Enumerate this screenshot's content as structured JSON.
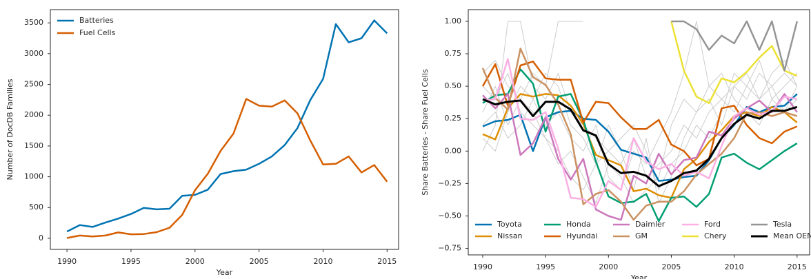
{
  "chart_data": [
    {
      "type": "line",
      "xlabel": "Year",
      "ylabel": "Number of DocDB Families",
      "x": [
        1990,
        1991,
        1992,
        1993,
        1994,
        1995,
        1996,
        1997,
        1998,
        1999,
        2000,
        2001,
        2002,
        2003,
        2004,
        2005,
        2006,
        2007,
        2008,
        2009,
        2010,
        2011,
        2012,
        2013,
        2014,
        2015
      ],
      "series": [
        {
          "name": "Batteries",
          "color": "#0173b2",
          "values": [
            110,
            215,
            185,
            255,
            320,
            395,
            495,
            470,
            480,
            690,
            705,
            790,
            1045,
            1090,
            1115,
            1210,
            1330,
            1515,
            1790,
            2245,
            2590,
            3480,
            3185,
            3250,
            3540,
            3330
          ]
        },
        {
          "name": "Fuel Cells",
          "color": "#d55e00",
          "values": [
            5,
            45,
            30,
            45,
            95,
            65,
            70,
            100,
            170,
            380,
            780,
            1050,
            1420,
            1700,
            2265,
            2155,
            2140,
            2240,
            2030,
            1590,
            1200,
            1210,
            1330,
            1070,
            1190,
            920
          ]
        }
      ],
      "xlim": [
        1988.7,
        2015.9
      ],
      "xticks": [
        1990,
        1995,
        2000,
        2005,
        2010,
        2015
      ],
      "ylim": [
        -180,
        3715
      ],
      "yticks": [
        0,
        500,
        1000,
        1500,
        2000,
        2500,
        3000,
        3500
      ],
      "legend": "upper left"
    },
    {
      "type": "line",
      "xlabel": "Year",
      "ylabel": "Share Batteries - Share Fuel Cells",
      "x": [
        1990,
        1991,
        1992,
        1993,
        1994,
        1995,
        1996,
        1997,
        1998,
        1999,
        2000,
        2001,
        2002,
        2003,
        2004,
        2005,
        2006,
        2007,
        2008,
        2009,
        2010,
        2011,
        2012,
        2013,
        2014,
        2015
      ],
      "background_color": "#cccccc",
      "background_series": [
        {
          "values": [
            0.0,
            0.2,
            1.0,
            1.0,
            0.5,
            0.4,
            0.6,
            0.3,
            0.2,
            0.1,
            0.0,
            -0.1,
            0.1,
            -0.2,
            -0.1,
            0.0,
            0.2,
            0.1,
            0.3,
            0.4,
            0.5,
            0.6,
            0.4,
            0.5,
            0.6,
            0.5
          ]
        },
        {
          "values": [
            0.3,
            0.5,
            0.2,
            0.4,
            0.6,
            0.5,
            1.0,
            1.0,
            1.0,
            null,
            null,
            null,
            null,
            null,
            null,
            null,
            null,
            null,
            null,
            null,
            null,
            null,
            null,
            null,
            null,
            null
          ]
        },
        {
          "values": [
            0.5,
            0.4,
            0.6,
            0.3,
            0.2,
            0.1,
            0.0,
            -0.2,
            -0.3,
            -0.1,
            0.2,
            0.0,
            -0.3,
            0.1,
            -0.4,
            -0.2,
            0.1,
            0.3,
            0.4,
            0.2,
            0.5,
            0.4,
            0.6,
            0.5,
            0.3,
            0.4
          ]
        },
        {
          "values": [
            0.1,
            0.0,
            0.3,
            0.5,
            0.4,
            0.2,
            0.3,
            0.1,
            0.0,
            0.2,
            -0.2,
            -0.3,
            0.0,
            -0.1,
            0.1,
            0.3,
            0.6,
            1.0,
            0.5,
            0.4,
            0.3,
            0.5,
            0.4,
            0.6,
            0.7,
            0.5
          ]
        },
        {
          "values": [
            0.6,
            0.7,
            0.5,
            0.4,
            0.3,
            0.1,
            -0.1,
            0.0,
            -0.2,
            -0.4,
            -0.1,
            -0.2,
            -0.4,
            -0.3,
            -0.2,
            0.2,
            0.4,
            0.3,
            0.5,
            0.6,
            0.4,
            0.3,
            0.2,
            0.4,
            0.3,
            0.5
          ]
        },
        {
          "values": [
            0.2,
            0.3,
            0.1,
            0.2,
            0.4,
            0.6,
            0.5,
            0.2,
            0.1,
            -0.1,
            0.0,
            0.1,
            0.2,
            0.0,
            -0.3,
            -0.1,
            0.0,
            0.2,
            0.1,
            0.3,
            0.6,
            0.5,
            0.7,
            0.4,
            0.5,
            0.6
          ]
        }
      ],
      "series": [
        {
          "name": "Toyota",
          "color": "#0173b2",
          "values": [
            0.19,
            0.23,
            0.24,
            0.28,
            0.0,
            0.26,
            0.3,
            0.31,
            0.25,
            0.24,
            0.15,
            0.01,
            -0.02,
            -0.05,
            -0.23,
            -0.22,
            -0.2,
            -0.19,
            -0.07,
            0.1,
            0.2,
            0.34,
            0.3,
            0.34,
            0.35,
            0.44
          ]
        },
        {
          "name": "Nissan",
          "color": "#de8f05",
          "values": [
            0.13,
            0.09,
            0.33,
            0.44,
            0.42,
            0.44,
            0.43,
            0.35,
            0.21,
            -0.03,
            -0.07,
            -0.11,
            -0.31,
            -0.29,
            -0.34,
            -0.36,
            -0.14,
            -0.06,
            0.07,
            0.16,
            0.27,
            0.3,
            0.27,
            0.34,
            0.3,
            0.22
          ]
        },
        {
          "name": "Honda",
          "color": "#029e73",
          "values": [
            0.37,
            0.43,
            0.44,
            0.63,
            0.52,
            0.15,
            0.42,
            0.44,
            0.24,
            -0.08,
            -0.35,
            -0.4,
            -0.39,
            -0.33,
            -0.54,
            -0.36,
            -0.35,
            -0.43,
            -0.33,
            -0.05,
            -0.02,
            -0.09,
            -0.14,
            -0.07,
            0.0,
            0.06
          ]
        },
        {
          "name": "Hyundai",
          "color": "#d55e00",
          "values": [
            0.5,
            0.67,
            0.35,
            0.66,
            0.69,
            0.56,
            0.55,
            0.55,
            0.22,
            0.38,
            0.37,
            0.26,
            0.17,
            0.17,
            0.24,
            0.05,
            0.0,
            -0.11,
            -0.06,
            0.33,
            0.35,
            0.2,
            0.1,
            0.06,
            0.15,
            0.19
          ]
        },
        {
          "name": "Daimler",
          "color": "#cc78bc",
          "values": [
            0.43,
            0.33,
            0.44,
            -0.03,
            0.06,
            0.26,
            -0.06,
            -0.22,
            -0.06,
            -0.45,
            -0.5,
            -0.53,
            -0.19,
            -0.25,
            -0.02,
            -0.18,
            -0.07,
            -0.05,
            0.15,
            0.12,
            0.25,
            0.33,
            0.39,
            0.3,
            0.44,
            0.3
          ]
        },
        {
          "name": "GM",
          "color": "#ca9161",
          "values": [
            0.64,
            0.41,
            0.32,
            0.79,
            0.57,
            0.51,
            0.36,
            0.13,
            -0.41,
            -0.33,
            -0.3,
            -0.39,
            -0.53,
            -0.42,
            -0.39,
            -0.39,
            -0.31,
            -0.18,
            -0.1,
            -0.02,
            0.1,
            0.29,
            0.3,
            0.27,
            0.3,
            0.27
          ]
        },
        {
          "name": "Ford",
          "color": "#fbafe4",
          "values": [
            0.39,
            0.4,
            0.71,
            0.25,
            0.24,
            0.3,
            0.02,
            -0.36,
            -0.37,
            -0.43,
            -0.23,
            -0.3,
            0.1,
            -0.08,
            -0.14,
            -0.1,
            -0.19,
            -0.16,
            -0.21,
            0.04,
            0.27,
            0.33,
            0.28,
            0.31,
            0.42,
            0.4
          ]
        },
        {
          "name": "Chery",
          "color": "#ece133",
          "values": [
            null,
            null,
            null,
            null,
            null,
            null,
            null,
            null,
            null,
            null,
            null,
            null,
            null,
            null,
            null,
            1.0,
            0.62,
            0.42,
            0.37,
            0.56,
            0.53,
            0.61,
            0.72,
            0.81,
            0.62,
            0.58
          ]
        },
        {
          "name": "Tesla",
          "color": "#949494",
          "values": [
            null,
            null,
            null,
            null,
            null,
            null,
            null,
            null,
            null,
            null,
            null,
            null,
            null,
            null,
            null,
            1.0,
            1.0,
            0.94,
            0.78,
            0.89,
            0.83,
            1.0,
            0.78,
            1.0,
            0.62,
            1.0
          ]
        },
        {
          "name": "Mean OEM",
          "color": "#000000",
          "values": [
            0.4,
            0.36,
            0.38,
            0.39,
            0.27,
            0.38,
            0.38,
            0.32,
            0.16,
            0.12,
            -0.1,
            -0.17,
            -0.16,
            -0.19,
            -0.27,
            -0.23,
            -0.17,
            -0.15,
            -0.06,
            0.1,
            0.21,
            0.28,
            0.25,
            0.31,
            0.31,
            0.34
          ]
        }
      ],
      "xlim": [
        1988.85,
        2016.0
      ],
      "xticks": [
        1990,
        1995,
        2000,
        2005,
        2010,
        2015
      ],
      "ylim": [
        -0.8,
        1.09
      ],
      "yticks": [
        {
          "value": -0.75,
          "label": "−0.75"
        },
        {
          "value": -0.5,
          "label": "−0.50"
        },
        {
          "value": -0.25,
          "label": "−0.25"
        },
        {
          "value": 0,
          "label": "0.00"
        },
        {
          "value": 0.25,
          "label": "0.25"
        },
        {
          "value": 0.5,
          "label": "0.50"
        },
        {
          "value": 0.75,
          "label": "0.75"
        },
        {
          "value": 1,
          "label": "1.00"
        }
      ],
      "legend": "lower center"
    }
  ]
}
